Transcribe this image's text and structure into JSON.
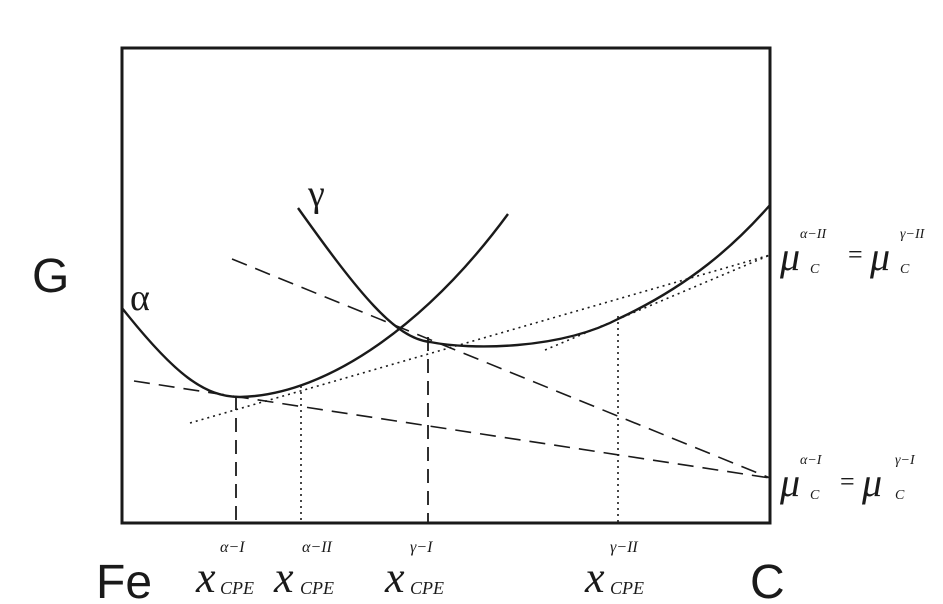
{
  "labels": {
    "g_axis": "G",
    "left_element": "Fe",
    "right_element": "C",
    "alpha_curve": "α",
    "gamma_curve": "γ"
  },
  "mu_top": {
    "base": "μ",
    "sub": "C",
    "sup_left": "α−II",
    "sup_right": "γ−II",
    "equals": "="
  },
  "mu_bottom": {
    "base": "μ",
    "sub": "C",
    "sup_left": "α−I",
    "sup_right": "γ−I",
    "equals": "="
  },
  "x_markers": [
    {
      "base": "x",
      "sub": "CPE",
      "sup": "α−I"
    },
    {
      "base": "x",
      "sub": "CPE",
      "sup": "α−II"
    },
    {
      "base": "x",
      "sub": "CPE",
      "sup": "γ−I"
    },
    {
      "base": "x",
      "sub": "CPE",
      "sup": "γ−II"
    }
  ]
}
